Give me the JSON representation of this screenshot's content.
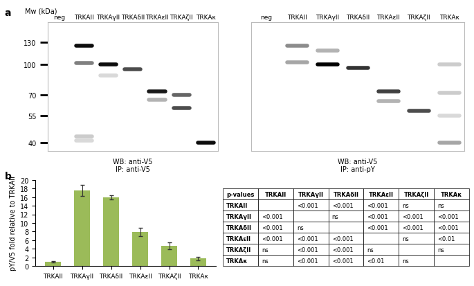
{
  "panel_labels": [
    "a",
    "b"
  ],
  "chart_data": [
    {
      "type": "blot",
      "ylabel": "Mw (kDa)",
      "categories": [
        "neg",
        "TRKAII",
        "TRKAγII",
        "TRKAδII",
        "TRKAεII",
        "TRKAζII",
        "TRKAκ"
      ],
      "log": "y",
      "ylim": [
        36,
        165
      ],
      "yticks": [
        130,
        100,
        70,
        55,
        40
      ],
      "captions": [
        "WB: anti-V5",
        "IP: anti-V5"
      ],
      "bands": [
        [],
        [
          {
            "kda": 125,
            "intensity": 0.95
          },
          {
            "kda": 102,
            "intensity": 0.5
          },
          {
            "kda": 43,
            "intensity": 0.2
          },
          {
            "kda": 41,
            "intensity": 0.15
          }
        ],
        [
          {
            "kda": 100,
            "intensity": 0.95
          },
          {
            "kda": 88,
            "intensity": 0.15
          }
        ],
        [
          {
            "kda": 95,
            "intensity": 0.7
          }
        ],
        [
          {
            "kda": 73,
            "intensity": 0.9
          },
          {
            "kda": 66,
            "intensity": 0.3
          }
        ],
        [
          {
            "kda": 70,
            "intensity": 0.6
          },
          {
            "kda": 60,
            "intensity": 0.7
          }
        ],
        [
          {
            "kda": 40,
            "intensity": 0.95
          }
        ]
      ]
    },
    {
      "type": "blot",
      "categories": [
        "neg",
        "TRKAII",
        "TRKAγII",
        "TRKAδII",
        "TRKAεII",
        "TRKAζII",
        "TRKAκ"
      ],
      "log": "y",
      "ylim": [
        36,
        165
      ],
      "tick_labels": "x",
      "captions": [
        "WB: anti-V5",
        "IP: anti-pY"
      ],
      "bands": [
        [],
        [
          {
            "kda": 125,
            "intensity": 0.45
          },
          {
            "kda": 103,
            "intensity": 0.35
          }
        ],
        [
          {
            "kda": 100,
            "intensity": 1.0
          },
          {
            "kda": 118,
            "intensity": 0.3
          }
        ],
        [
          {
            "kda": 96,
            "intensity": 0.8
          }
        ],
        [
          {
            "kda": 73,
            "intensity": 0.75
          },
          {
            "kda": 65,
            "intensity": 0.3
          }
        ],
        [
          {
            "kda": 58,
            "intensity": 0.7
          }
        ],
        [
          {
            "kda": 100,
            "intensity": 0.2
          },
          {
            "kda": 72,
            "intensity": 0.2
          },
          {
            "kda": 55,
            "intensity": 0.15
          },
          {
            "kda": 40,
            "intensity": 0.35
          }
        ]
      ]
    },
    {
      "type": "bar",
      "ylabel": "pY/V5 fold relative to TRKAII",
      "categories": [
        "TRKAII",
        "TRKAγII",
        "TRKAδII",
        "TRKAεII",
        "TRKAζII",
        "TRKAκ"
      ],
      "values": [
        1.0,
        17.6,
        16.0,
        7.9,
        4.6,
        1.7
      ],
      "errors": [
        0.15,
        1.3,
        0.5,
        1.0,
        0.8,
        0.4
      ],
      "color": "#9bbb59",
      "ylim": [
        0,
        20
      ],
      "yticks": [
        0,
        2,
        4,
        6,
        8,
        10,
        12,
        14,
        16,
        18,
        20
      ],
      "grid": false
    }
  ],
  "table": {
    "header": [
      "p-values",
      "TRKAII",
      "TRKAγII",
      "TRKAδII",
      "TRKAεII",
      "TRKAζII",
      "TRKAκ"
    ],
    "rows": [
      [
        "TRKAII",
        null,
        "<0.001",
        "<0.001",
        "<0.001",
        "ns",
        "ns"
      ],
      [
        "TRKAγII",
        "<0.001",
        null,
        "ns",
        "<0.001",
        "<0.001",
        "<0.001"
      ],
      [
        "TRKAδII",
        "<0.001",
        "ns",
        null,
        "<0.001",
        "<0.001",
        "<0.001"
      ],
      [
        "TRKAεII",
        "<0.001",
        "<0.001",
        "<0.001",
        null,
        "ns",
        "<0.01"
      ],
      [
        "TRKAζII",
        "ns",
        "<0.001",
        "<0.001",
        "ns",
        null,
        "ns"
      ],
      [
        "TRKAκ",
        "ns",
        "<0.001",
        "<0.001",
        "<0.01",
        "ns",
        null
      ]
    ]
  }
}
